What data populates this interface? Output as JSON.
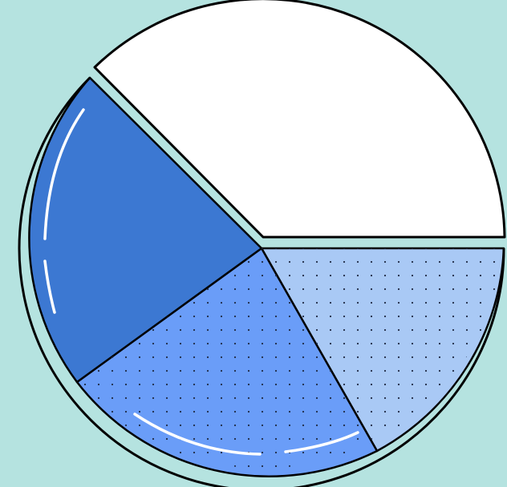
{
  "illustration": {
    "type": "pie",
    "background_color": "#B5E3E0",
    "outline_color": "#000000",
    "highlight_color": "#FFFFFF",
    "dot_color": "#1F2A44",
    "slices": [
      {
        "name": "white-slice",
        "fill": "#FFFFFF",
        "pattern": "none",
        "exploded": true
      },
      {
        "name": "light-blue-slice",
        "fill": "#A9C9F5",
        "pattern": "dotted",
        "exploded": false
      },
      {
        "name": "mid-blue-slice",
        "fill": "#6A9DF8",
        "pattern": "dotted",
        "exploded": false
      },
      {
        "name": "dark-blue-slice",
        "fill": "#3C78D2",
        "pattern": "none",
        "exploded": false
      }
    ]
  }
}
